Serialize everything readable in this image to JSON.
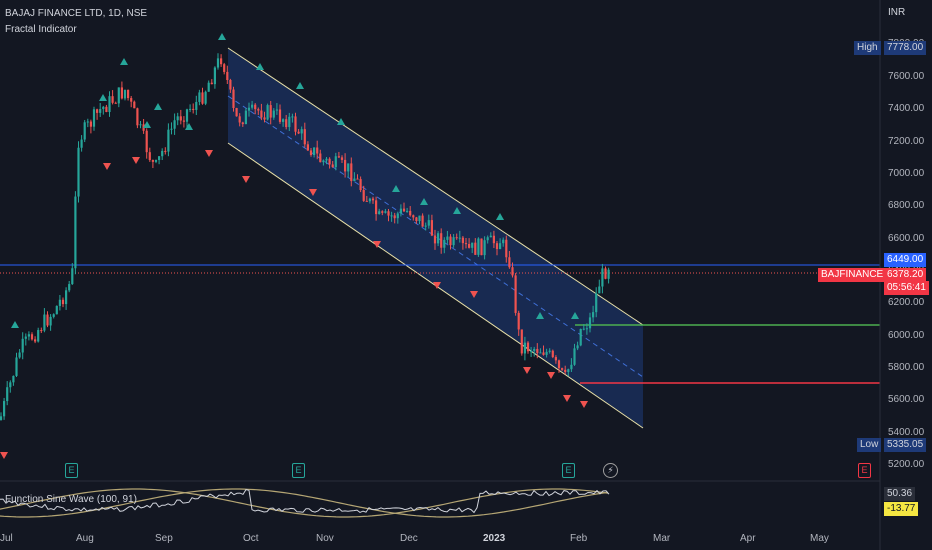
{
  "header": {
    "symbol_line": "BAJAJ FINANCE LTD, 1D, NSE",
    "indicator": "Fractal Indicator"
  },
  "currency": "INR",
  "price_axis": [
    "7800.00",
    "7600.00",
    "7400.00",
    "7200.00",
    "7000.00",
    "6800.00",
    "6600.00",
    "6400.00",
    "6200.00",
    "6000.00",
    "5800.00",
    "5600.00",
    "5400.00",
    "5200.00"
  ],
  "tags": {
    "high_label": "High",
    "high_value": "7778.00",
    "last_value": "6449.00",
    "symbol_tag": "BAJFINANCE",
    "current_price": "6378.20",
    "countdown": "05:56:41",
    "low_label": "Low",
    "low_value": "5335.05"
  },
  "oscillator": {
    "title": "Function Sine Wave (100, 91)",
    "value_1": "50.36",
    "value_2": "-13.77"
  },
  "time_axis": [
    "Jul",
    "Aug",
    "Sep",
    "Oct",
    "Nov",
    "Dec",
    "2023",
    "Feb",
    "Mar",
    "Apr",
    "May"
  ],
  "earnings_badge": "E",
  "colors": {
    "background": "#131722",
    "up": "#26a69a",
    "down": "#ef5350",
    "channel_fill": "#1e3a78",
    "channel_border": "#e8e0a8",
    "hline_blue": "#2962ff",
    "support_green": "#4caf50",
    "resist_red": "#f23645",
    "highlight_yellow": "#f5e642"
  }
}
